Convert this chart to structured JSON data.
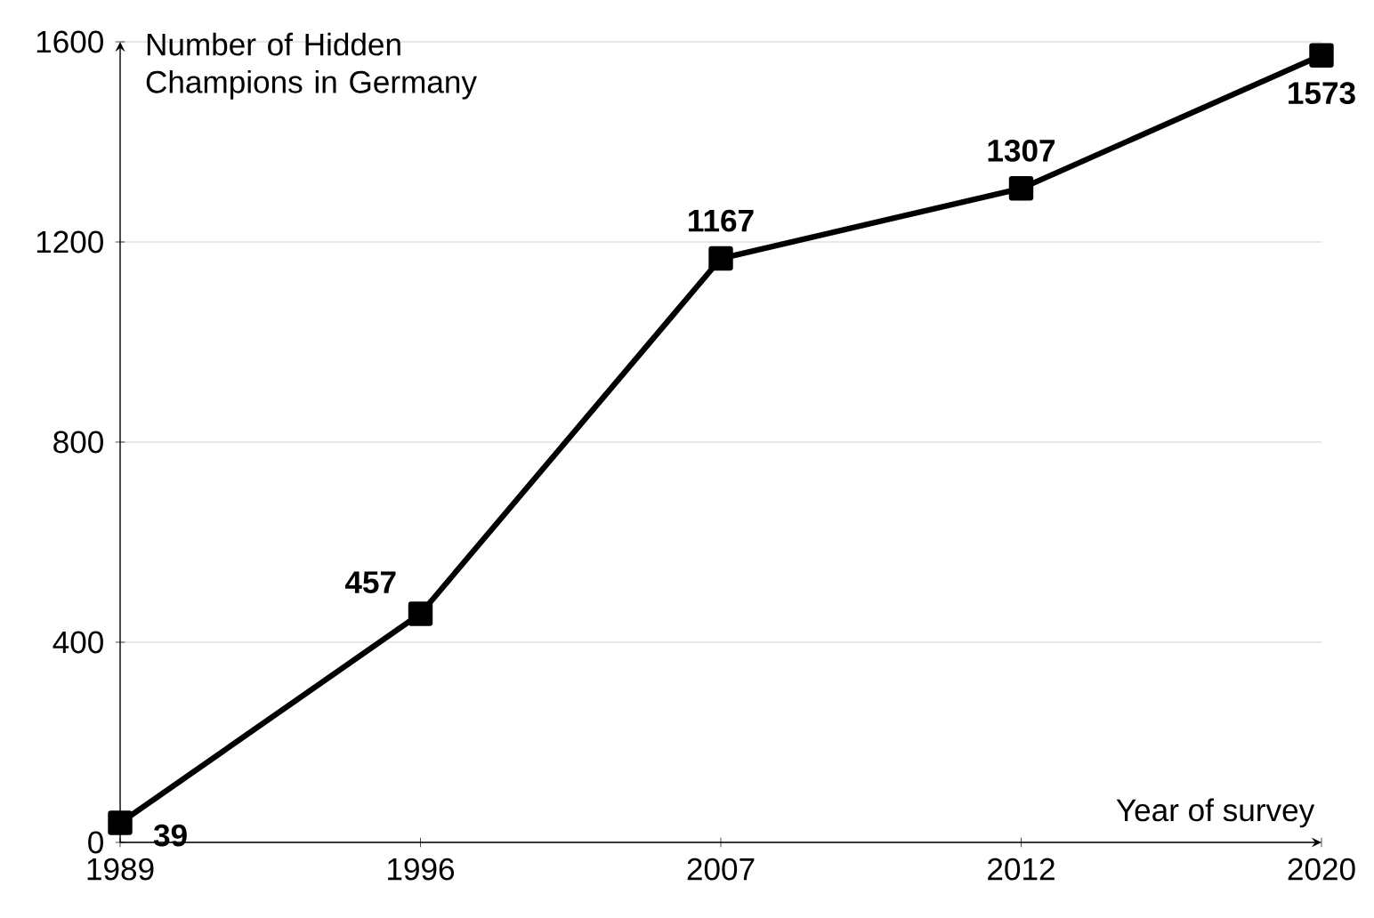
{
  "chart_data": {
    "type": "line",
    "xlabel": "Year of survey",
    "ylabel": "Number of Hidden Champions in Germany",
    "categories": [
      "1989",
      "1996",
      "2007",
      "2012",
      "2020"
    ],
    "values": [
      39,
      457,
      1167,
      1307,
      1573
    ],
    "color": "#000000",
    "marker": "square",
    "line_style": "solid",
    "data_labels": true,
    "grid": "y",
    "ylim": [
      0,
      1600
    ],
    "yticks": [
      0,
      400,
      800,
      1200,
      1600
    ]
  }
}
